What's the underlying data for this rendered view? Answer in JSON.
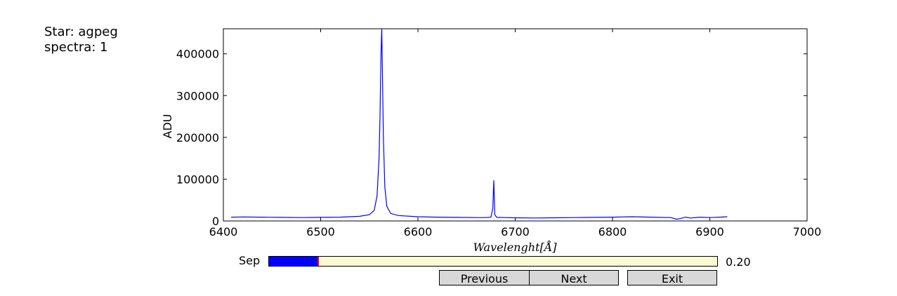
{
  "info": {
    "star_line": "Star: agpeg",
    "spectra_line": "spectra: 1"
  },
  "chart_data": {
    "type": "line",
    "title": "",
    "xlabel": "Wavelenght[Å]",
    "ylabel": "ADU",
    "xlim": [
      6400,
      7000
    ],
    "ylim": [
      0,
      460000
    ],
    "xticks": [
      6400,
      6500,
      6600,
      6700,
      6800,
      6900,
      7000
    ],
    "yticks": [
      0,
      100000,
      200000,
      300000,
      400000
    ],
    "grid": false,
    "color": "#0000ff",
    "series": [
      {
        "x": [
          6408,
          6420,
          6440,
          6460,
          6480,
          6500,
          6520,
          6540,
          6550,
          6555,
          6558,
          6560,
          6561,
          6562,
          6562.8,
          6563.5,
          6564.5,
          6566,
          6568,
          6572,
          6580,
          6600,
          6620,
          6640,
          6660,
          6670,
          6675,
          6677,
          6678,
          6679,
          6681,
          6690,
          6700,
          6720,
          6740,
          6760,
          6780,
          6800,
          6820,
          6840,
          6860,
          6866,
          6870,
          6875,
          6880,
          6890,
          6900,
          6910,
          6918
        ],
        "y": [
          9000,
          9500,
          9000,
          8500,
          8000,
          8500,
          9000,
          11000,
          15000,
          25000,
          60000,
          150000,
          250000,
          400000,
          460000,
          360000,
          200000,
          80000,
          35000,
          18000,
          13000,
          10000,
          9000,
          8500,
          8000,
          8000,
          9000,
          30000,
          97000,
          15000,
          8500,
          8000,
          7500,
          7000,
          7500,
          8000,
          8500,
          9000,
          10000,
          9000,
          8000,
          4000,
          6000,
          9000,
          7000,
          9000,
          8000,
          9000,
          10000
        ]
      }
    ]
  },
  "controls": {
    "slider_label": "Sep",
    "slider_value_text": "0.20",
    "slider_fraction": 0.11,
    "previous_label": "Previous",
    "next_label": "Next",
    "exit_label": "Exit"
  }
}
